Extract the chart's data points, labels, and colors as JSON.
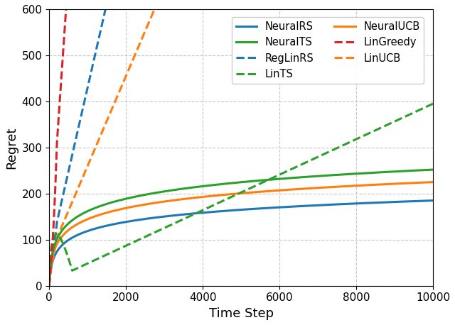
{
  "title": "",
  "xlabel": "Time Step",
  "ylabel": "Regret",
  "xlim": [
    0,
    10000
  ],
  "ylim": [
    0,
    600
  ],
  "xticks": [
    0,
    2000,
    4000,
    6000,
    8000,
    10000
  ],
  "yticks": [
    0,
    100,
    200,
    300,
    400,
    500,
    600
  ],
  "series": [
    {
      "label": "NeuralRS",
      "color": "#1f77b4",
      "linestyle": "-",
      "linewidth": 2.2,
      "end_val": 185,
      "log_k": 0.06
    },
    {
      "label": "RegLinRS",
      "color": "#1f77b4",
      "linestyle": "--",
      "linewidth": 2.2,
      "clip_val": 600,
      "linear_slope": 0.365,
      "linear_intercept": 65,
      "clip_x": 1470
    },
    {
      "label": "NeuralUCB",
      "color": "#ff7f0e",
      "linestyle": "-",
      "linewidth": 2.2,
      "end_val": 225,
      "log_k": 0.06
    },
    {
      "label": "LinUCB",
      "color": "#ff7f0e",
      "linestyle": "--",
      "linewidth": 2.2,
      "clip_val": 600,
      "linear_slope": 0.195,
      "linear_intercept": 65,
      "clip_x": 2745
    },
    {
      "label": "NeuralTS",
      "color": "#2ca02c",
      "linestyle": "-",
      "linewidth": 2.2,
      "end_val": 252,
      "log_k": 0.06
    },
    {
      "label": "LinTS",
      "color": "#2ca02c",
      "linestyle": "--",
      "linewidth": 2.2,
      "end_val": 395,
      "linear_slope": 0.0385,
      "linear_intercept": 10
    },
    {
      "label": "LinGreedy",
      "color": "#d62728",
      "linestyle": "--",
      "linewidth": 2.2,
      "clip_val": 600,
      "linear_slope": 1.22,
      "linear_intercept": 65,
      "clip_x": 440
    }
  ],
  "legend_order": [
    "NeuralRS",
    "NeuralTS",
    "RegLinRS",
    "LinTS",
    "NeuralUCB",
    "LinGreedy",
    "LinUCB"
  ],
  "legend_ncol": 2,
  "legend_fontsize": 10.5,
  "grid_color": "#b0b0b0",
  "grid_linestyle": "--",
  "grid_alpha": 0.7,
  "background_color": "#ffffff"
}
